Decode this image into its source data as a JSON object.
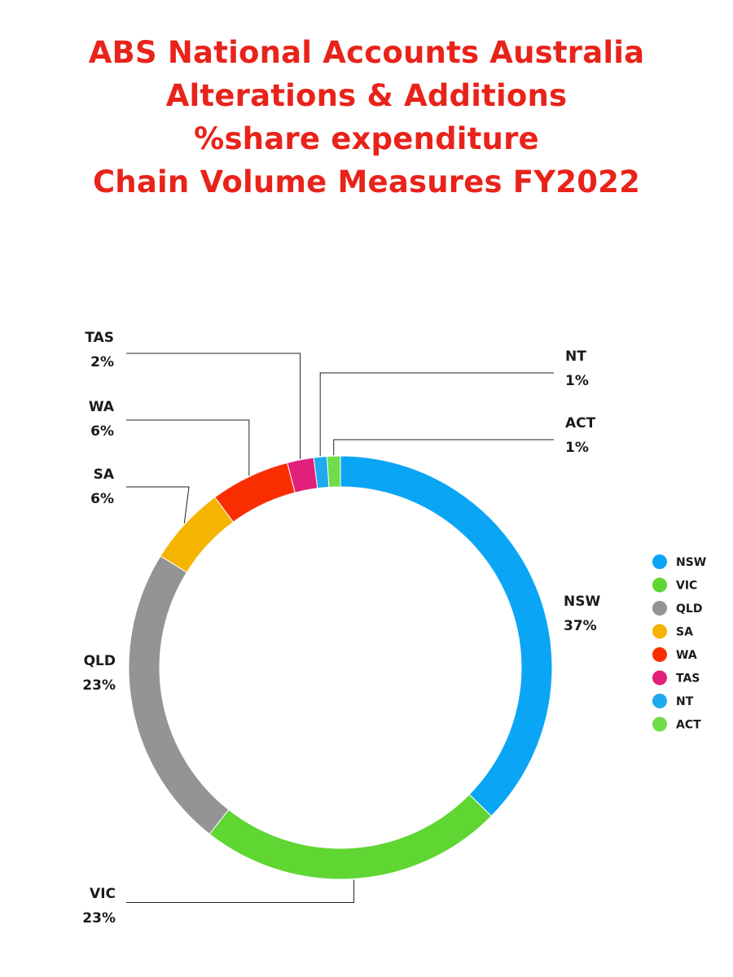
{
  "chart_data": {
    "type": "pie",
    "variant": "donut",
    "title_lines": [
      "ABS National Accounts Australia",
      "Alterations & Additions",
      "%share expenditure",
      "Chain Volume Measures FY2022"
    ],
    "legend_position": "right",
    "slices": [
      {
        "label": "NSW",
        "value": 37,
        "value_label": "37%",
        "color": "#0aa5f5"
      },
      {
        "label": "VIC",
        "value": 23,
        "value_label": "23%",
        "color": "#5fd632"
      },
      {
        "label": "QLD",
        "value": 23,
        "value_label": "23%",
        "color": "#949494"
      },
      {
        "label": "SA",
        "value": 6,
        "value_label": "6%",
        "color": "#f5b400"
      },
      {
        "label": "WA",
        "value": 6,
        "value_label": "6%",
        "color": "#fa2d00"
      },
      {
        "label": "TAS",
        "value": 2,
        "value_label": "2%",
        "color": "#e0207a"
      },
      {
        "label": "NT",
        "value": 1,
        "value_label": "1%",
        "color": "#1fa9ee"
      },
      {
        "label": "ACT",
        "value": 1,
        "value_label": "1%",
        "color": "#6fdc4a"
      }
    ]
  }
}
